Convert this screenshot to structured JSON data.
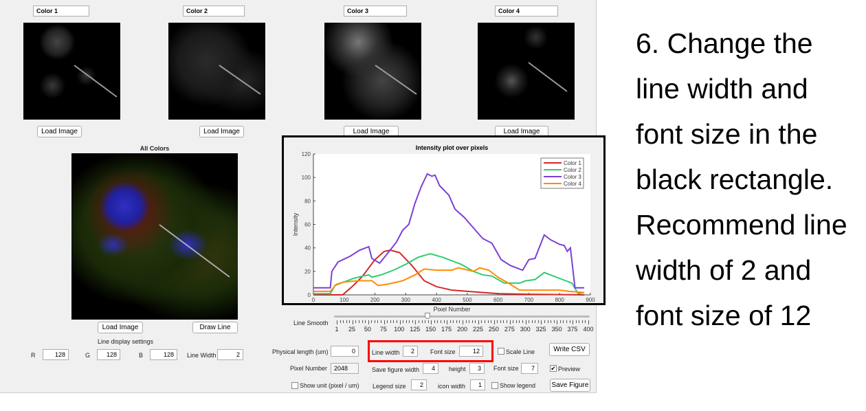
{
  "channels": [
    {
      "name": "Color 1",
      "load": "Load Image"
    },
    {
      "name": "Color 2",
      "load": "Load Image"
    },
    {
      "name": "Color 3",
      "load": "Load Image"
    },
    {
      "name": "Color 4",
      "load": "Load Image"
    }
  ],
  "composite": {
    "title": "All Colors",
    "load": "Load Image",
    "draw": "Draw Line"
  },
  "line_display": {
    "title": "Line display settings",
    "r_label": "R",
    "r": "128",
    "g_label": "G",
    "g": "128",
    "b_label": "B",
    "b": "128",
    "lw_label": "Line Width",
    "lw": "2"
  },
  "slider": {
    "label": "Line Smooth",
    "min": 1,
    "max": 400,
    "value": 145,
    "ticks": [
      "1",
      "25",
      "50",
      "75",
      "100",
      "125",
      "150",
      "175",
      "200",
      "225",
      "250",
      "275",
      "300",
      "325",
      "350",
      "375",
      "400"
    ]
  },
  "controls": {
    "phys_label": "Physical length (um)",
    "phys": "0",
    "pixnum_label": "Pixel Number",
    "pixnum": "2048",
    "show_unit": "Show unit (pixel / um)",
    "show_unit_checked": false,
    "line_width_label": "Line width",
    "line_width": "2",
    "font_size_label": "Font size",
    "font_size": "12",
    "save_w_label": "Save figure width",
    "save_w": "4",
    "height_label": "height",
    "height": "3",
    "legend_size_label": "Legend size",
    "legend_size": "2",
    "icon_width_label": "icon width",
    "icon_width": "1",
    "scale_line": "Scale Line",
    "scale_line_checked": false,
    "font_size2_label": "Font size",
    "font_size2": "7",
    "show_legend": "Show legend",
    "show_legend_checked": false,
    "write_csv": "Write CSV",
    "preview": "Preview",
    "preview_checked": true,
    "save_figure": "Save Figure"
  },
  "highlight_color": "#ff0000",
  "note": "6. Change the line width and font size in the black rectangle. Recommend line width of 2 and font size of 12",
  "chart_data": {
    "type": "line",
    "title": "Intensity plot over pixels",
    "xlabel": "Pixel Number",
    "ylabel": "Intensity",
    "xlim": [
      0,
      900
    ],
    "ylim": [
      0,
      120
    ],
    "xticks": [
      "0",
      "100",
      "200",
      "300",
      "400",
      "500",
      "600",
      "700",
      "800",
      "900"
    ],
    "yticks": [
      "0",
      "20",
      "40",
      "60",
      "80",
      "100",
      "120"
    ],
    "legend_position": "top-right",
    "series": [
      {
        "name": "Color 1",
        "color": "#d62728",
        "points": [
          [
            0,
            0
          ],
          [
            95,
            0
          ],
          [
            130,
            8
          ],
          [
            160,
            16
          ],
          [
            200,
            30
          ],
          [
            230,
            37
          ],
          [
            250,
            38
          ],
          [
            280,
            36
          ],
          [
            320,
            25
          ],
          [
            360,
            12
          ],
          [
            400,
            7
          ],
          [
            450,
            4
          ],
          [
            500,
            3
          ],
          [
            600,
            1
          ],
          [
            700,
            0.5
          ],
          [
            880,
            0
          ]
        ]
      },
      {
        "name": "Color 2",
        "color": "#2ecc71",
        "points": [
          [
            0,
            1
          ],
          [
            55,
            1
          ],
          [
            70,
            8
          ],
          [
            100,
            11
          ],
          [
            130,
            14
          ],
          [
            160,
            16
          ],
          [
            180,
            17
          ],
          [
            190,
            15
          ],
          [
            220,
            17
          ],
          [
            260,
            21
          ],
          [
            300,
            26
          ],
          [
            340,
            32
          ],
          [
            380,
            35
          ],
          [
            420,
            32
          ],
          [
            450,
            29
          ],
          [
            480,
            26
          ],
          [
            520,
            20
          ],
          [
            550,
            17
          ],
          [
            580,
            16
          ],
          [
            620,
            10
          ],
          [
            670,
            10
          ],
          [
            690,
            12
          ],
          [
            720,
            13
          ],
          [
            750,
            19
          ],
          [
            780,
            16
          ],
          [
            820,
            12
          ],
          [
            840,
            10
          ],
          [
            860,
            1
          ],
          [
            880,
            2
          ]
        ]
      },
      {
        "name": "Color 3",
        "color": "#7b3fd6",
        "points": [
          [
            0,
            6
          ],
          [
            55,
            6
          ],
          [
            60,
            20
          ],
          [
            80,
            28
          ],
          [
            120,
            33
          ],
          [
            150,
            38
          ],
          [
            180,
            41
          ],
          [
            190,
            31
          ],
          [
            215,
            27
          ],
          [
            240,
            35
          ],
          [
            270,
            45
          ],
          [
            290,
            55
          ],
          [
            310,
            60
          ],
          [
            330,
            78
          ],
          [
            350,
            92
          ],
          [
            370,
            103
          ],
          [
            385,
            101
          ],
          [
            395,
            102
          ],
          [
            410,
            93
          ],
          [
            440,
            85
          ],
          [
            460,
            73
          ],
          [
            490,
            66
          ],
          [
            510,
            60
          ],
          [
            550,
            48
          ],
          [
            580,
            44
          ],
          [
            610,
            30
          ],
          [
            640,
            25
          ],
          [
            680,
            21
          ],
          [
            700,
            30
          ],
          [
            720,
            31
          ],
          [
            750,
            51
          ],
          [
            770,
            47
          ],
          [
            800,
            43
          ],
          [
            815,
            42
          ],
          [
            825,
            37
          ],
          [
            835,
            40
          ],
          [
            850,
            6
          ],
          [
            880,
            6
          ]
        ]
      },
      {
        "name": "Color 4",
        "color": "#ff8c00",
        "points": [
          [
            0,
            3
          ],
          [
            55,
            3
          ],
          [
            75,
            9
          ],
          [
            100,
            11
          ],
          [
            150,
            12
          ],
          [
            190,
            12
          ],
          [
            210,
            8
          ],
          [
            240,
            9
          ],
          [
            290,
            12
          ],
          [
            330,
            17
          ],
          [
            360,
            22
          ],
          [
            400,
            21
          ],
          [
            450,
            21
          ],
          [
            470,
            23
          ],
          [
            520,
            20
          ],
          [
            540,
            23
          ],
          [
            570,
            21
          ],
          [
            600,
            15
          ],
          [
            640,
            9
          ],
          [
            670,
            4
          ],
          [
            750,
            4
          ],
          [
            800,
            4
          ],
          [
            830,
            3
          ],
          [
            880,
            2
          ]
        ]
      }
    ]
  }
}
